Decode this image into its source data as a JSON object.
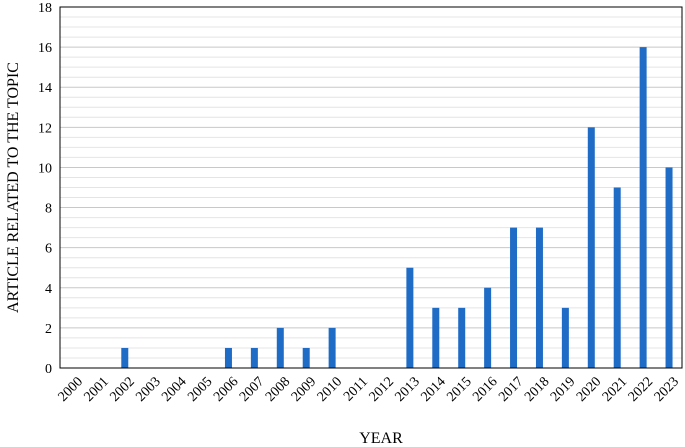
{
  "chart_data": {
    "type": "bar",
    "xlabel": "YEAR",
    "ylabel": "ARTICLE RELATED TO THE TOPIC",
    "ylim": [
      0,
      18
    ],
    "ytick_step": 2,
    "grid": "horizontal",
    "legend": "none",
    "bar_color": "#1f6cc6",
    "categories": [
      "2000",
      "2001",
      "2002",
      "2003",
      "2004",
      "2005",
      "2006",
      "2007",
      "2008",
      "2009",
      "2010",
      "2011",
      "2012",
      "2013",
      "2014",
      "2015",
      "2016",
      "2017",
      "2018",
      "2019",
      "2020",
      "2021",
      "2022",
      "2023"
    ],
    "values": [
      0,
      0,
      1,
      0,
      0,
      0,
      1,
      1,
      2,
      1,
      2,
      0,
      0,
      5,
      3,
      3,
      4,
      7,
      7,
      3,
      12,
      9,
      16,
      10
    ]
  }
}
